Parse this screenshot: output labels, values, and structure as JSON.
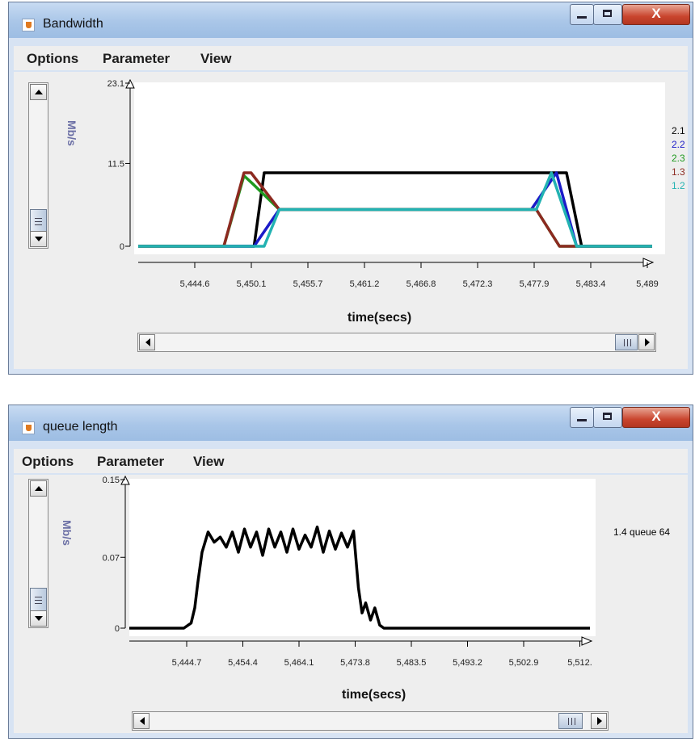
{
  "windows": [
    {
      "title": "Bandwidth",
      "menu": [
        "Options",
        "Parameter",
        "View"
      ],
      "ylabel": "Mb/s",
      "xlabel": "time(secs)",
      "yticks": [
        "23.1",
        "11.5",
        "0"
      ],
      "xticks": [
        "5,444.6",
        "5,450.1",
        "5,455.7",
        "5,461.2",
        "5,466.8",
        "5,472.3",
        "5,477.9",
        "5,483.4",
        "5,489"
      ],
      "legend": [
        {
          "label": "2.1",
          "color": "#000000"
        },
        {
          "label": "2.2",
          "color": "#1b1bc8"
        },
        {
          "label": "2.3",
          "color": "#1f9a1f"
        },
        {
          "label": "1.3",
          "color": "#8c2a20"
        },
        {
          "label": "1.2",
          "color": "#22b2b2"
        }
      ]
    },
    {
      "title": "queue length",
      "menu": [
        "Options",
        "Parameter",
        "View"
      ],
      "ylabel": "Mb/s",
      "xlabel": "time(secs)",
      "yticks": [
        "0.15",
        "0.07",
        "0"
      ],
      "xticks": [
        "5,444.7",
        "5,454.4",
        "5,464.1",
        "5,473.8",
        "5,483.5",
        "5,493.2",
        "5,502.9",
        "5,512."
      ],
      "legend": [
        {
          "label": "1.4 queue 64",
          "color": "#000000"
        }
      ]
    }
  ],
  "chart_data": [
    {
      "type": "line",
      "xlabel": "time(secs)",
      "ylabel": "Mb/s",
      "xlim": [
        5440,
        5491
      ],
      "ylim": [
        0,
        23.1
      ],
      "series": [
        {
          "name": "2.1",
          "color": "#000000",
          "x": [
            5440,
            5450,
            5451.5,
            5452.5,
            5481,
            5482.5,
            5484,
            5491
          ],
          "y": [
            0,
            0,
            0,
            10.2,
            10.2,
            10.2,
            0,
            0
          ]
        },
        {
          "name": "2.2",
          "color": "#1b1bc8",
          "x": [
            5440,
            5450,
            5451.5,
            5454,
            5479,
            5481.5,
            5483.5,
            5491
          ],
          "y": [
            0,
            0,
            0,
            5.1,
            5.1,
            10.2,
            0,
            0
          ]
        },
        {
          "name": "2.3",
          "color": "#1f9a1f",
          "x": [
            5440,
            5448.5,
            5450.5,
            5451.5,
            5454,
            5479.5,
            5481.8,
            5491
          ],
          "y": [
            0,
            0,
            9.8,
            8.5,
            5.1,
            5.1,
            0,
            0
          ]
        },
        {
          "name": "1.3",
          "color": "#8c2a20",
          "x": [
            5440,
            5448.5,
            5450.5,
            5451.2,
            5454,
            5479.5,
            5481.8,
            5491
          ],
          "y": [
            0,
            0,
            10.2,
            10.2,
            5.1,
            5.1,
            0,
            0
          ]
        },
        {
          "name": "1.2",
          "color": "#22b2b2",
          "x": [
            5440,
            5450.5,
            5452.5,
            5454,
            5479.5,
            5481,
            5483.5,
            5491
          ],
          "y": [
            0,
            0,
            0,
            5.1,
            5.1,
            10.2,
            0,
            0
          ]
        }
      ]
    },
    {
      "type": "line",
      "xlabel": "time(secs)",
      "ylabel": "Mb/s",
      "xlim": [
        5439,
        5515
      ],
      "ylim": [
        0,
        0.15
      ],
      "series": [
        {
          "name": "1.4 queue 64",
          "color": "#000000",
          "x": [
            5439,
            5448,
            5449.2,
            5449.8,
            5450.3,
            5451,
            5452,
            5453,
            5454,
            5455,
            5456,
            5457,
            5458,
            5459,
            5460,
            5461,
            5462,
            5463,
            5464,
            5465,
            5466,
            5467,
            5468,
            5469,
            5470,
            5471,
            5472,
            5473,
            5474,
            5475,
            5476,
            5476.8,
            5477.4,
            5478,
            5478.8,
            5479.5,
            5480.3,
            5481,
            5515
          ],
          "y": [
            0,
            0,
            0.005,
            0.02,
            0.045,
            0.075,
            0.095,
            0.085,
            0.09,
            0.08,
            0.095,
            0.075,
            0.098,
            0.08,
            0.095,
            0.072,
            0.098,
            0.08,
            0.095,
            0.075,
            0.098,
            0.078,
            0.092,
            0.08,
            0.1,
            0.075,
            0.096,
            0.078,
            0.094,
            0.08,
            0.096,
            0.04,
            0.015,
            0.025,
            0.008,
            0.02,
            0.003,
            0,
            0
          ]
        }
      ]
    }
  ]
}
